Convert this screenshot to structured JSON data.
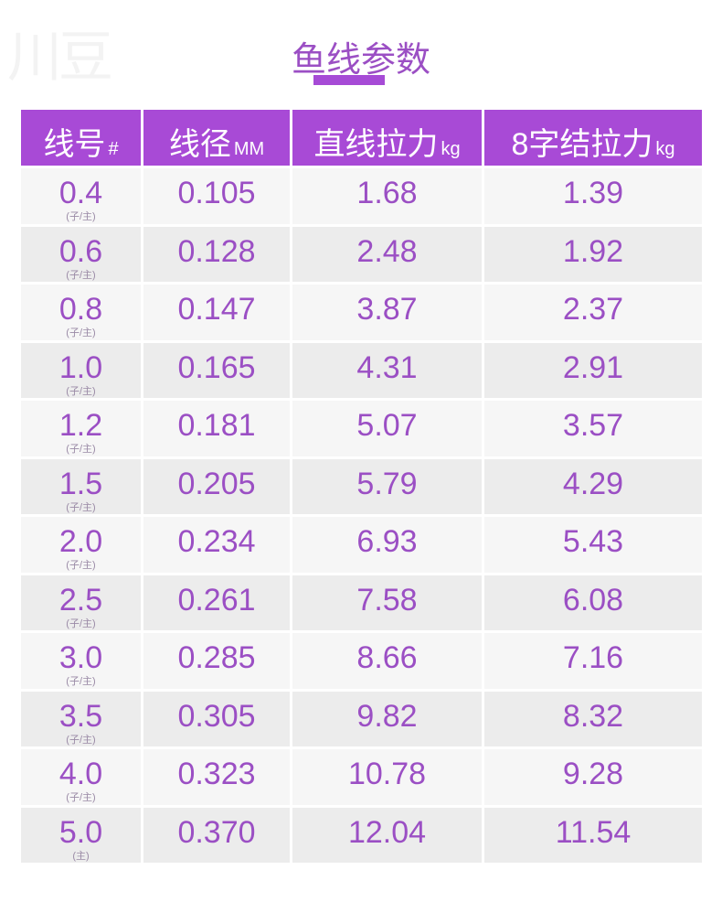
{
  "watermark": "川豆",
  "title": "鱼线参数",
  "colors": {
    "header": "#a84ad6",
    "text": "#9b4fc4"
  },
  "headers": [
    {
      "label": "线号",
      "unit": "#"
    },
    {
      "label": "线径",
      "unit": "MM"
    },
    {
      "label": "直线拉力",
      "unit": "kg"
    },
    {
      "label": "8字结拉力",
      "unit": "kg"
    }
  ],
  "rows": [
    {
      "size": "0.4",
      "note": "(子/主)",
      "diameter": "0.105",
      "straight": "1.68",
      "knot": "1.39"
    },
    {
      "size": "0.6",
      "note": "(子/主)",
      "diameter": "0.128",
      "straight": "2.48",
      "knot": "1.92"
    },
    {
      "size": "0.8",
      "note": "(子/主)",
      "diameter": "0.147",
      "straight": "3.87",
      "knot": "2.37"
    },
    {
      "size": "1.0",
      "note": "(子/主)",
      "diameter": "0.165",
      "straight": "4.31",
      "knot": "2.91"
    },
    {
      "size": "1.2",
      "note": "(子/主)",
      "diameter": "0.181",
      "straight": "5.07",
      "knot": "3.57"
    },
    {
      "size": "1.5",
      "note": "(子/主)",
      "diameter": "0.205",
      "straight": "5.79",
      "knot": "4.29"
    },
    {
      "size": "2.0",
      "note": "(子/主)",
      "diameter": "0.234",
      "straight": "6.93",
      "knot": "5.43"
    },
    {
      "size": "2.5",
      "note": "(子/主)",
      "diameter": "0.261",
      "straight": "7.58",
      "knot": "6.08"
    },
    {
      "size": "3.0",
      "note": "(子/主)",
      "diameter": "0.285",
      "straight": "8.66",
      "knot": "7.16"
    },
    {
      "size": "3.5",
      "note": "(子/主)",
      "diameter": "0.305",
      "straight": "9.82",
      "knot": "8.32"
    },
    {
      "size": "4.0",
      "note": "(子/主)",
      "diameter": "0.323",
      "straight": "10.78",
      "knot": "9.28"
    },
    {
      "size": "5.0",
      "note": "(主)",
      "diameter": "0.370",
      "straight": "12.04",
      "knot": "11.54"
    }
  ]
}
